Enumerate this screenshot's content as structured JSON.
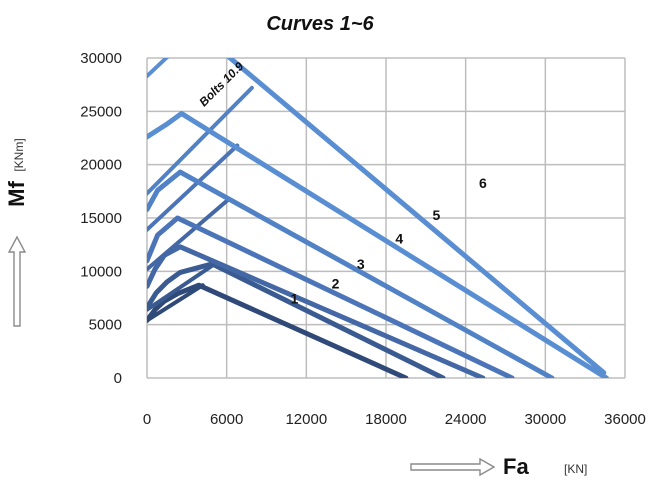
{
  "chart_data": {
    "type": "line",
    "title": "Curves 1~6",
    "xlabel": "Fa",
    "xunit": "[KN]",
    "ylabel": "Mf",
    "yunit": "[KNm]",
    "xlim": [
      0,
      36000
    ],
    "ylim": [
      0,
      30000
    ],
    "xticks": [
      "0",
      "6000",
      "12000",
      "18000",
      "24000",
      "30000",
      "36000"
    ],
    "yticks": [
      "0",
      "5000",
      "10000",
      "15000",
      "20000",
      "25000",
      "30000"
    ],
    "grid": true,
    "legend": "none",
    "colors": [
      "#2f4a78",
      "#3a5b91",
      "#4468a6",
      "#4b75b8",
      "#5282c6",
      "#5a8ed2"
    ],
    "series": [
      {
        "name": "1",
        "points": [
          [
            0,
            5400
          ],
          [
            600,
            6400
          ],
          [
            1300,
            7200
          ],
          [
            2300,
            7900
          ],
          [
            3900,
            8700
          ],
          [
            19500,
            0
          ]
        ],
        "bolt_line": [
          [
            0,
            5400
          ],
          [
            4200,
            8700
          ]
        ]
      },
      {
        "name": "2",
        "points": [
          [
            0,
            6600
          ],
          [
            700,
            8000
          ],
          [
            1500,
            9000
          ],
          [
            2500,
            9900
          ],
          [
            4900,
            10700
          ],
          [
            22300,
            0
          ]
        ],
        "bolt_line": [
          [
            0,
            6400
          ],
          [
            5000,
            10600
          ]
        ]
      },
      {
        "name": "3",
        "points": [
          [
            0,
            8600
          ],
          [
            600,
            10200
          ],
          [
            1300,
            11500
          ],
          [
            2500,
            12300
          ],
          [
            25300,
            0
          ]
        ],
        "bolt_line": [
          [
            0,
            10200
          ],
          [
            6100,
            16700
          ]
        ]
      },
      {
        "name": "4",
        "points": [
          [
            0,
            11000
          ],
          [
            800,
            13400
          ],
          [
            2300,
            15000
          ],
          [
            27500,
            0
          ]
        ],
        "bolt_line": [
          [
            0,
            13900
          ],
          [
            6800,
            21800
          ]
        ]
      },
      {
        "name": "5",
        "points": [
          [
            0,
            15800
          ],
          [
            800,
            17600
          ],
          [
            2500,
            19300
          ],
          [
            30500,
            0
          ]
        ],
        "bolt_line": [
          [
            0,
            17300
          ],
          [
            7900,
            27200
          ]
        ]
      },
      {
        "name": "6",
        "points": [
          [
            0,
            22600
          ],
          [
            1500,
            23800
          ],
          [
            2600,
            24800
          ],
          [
            34600,
            0
          ]
        ],
        "bolt_line": [
          [
            0,
            28300
          ],
          [
            2300,
            31000
          ]
        ]
      },
      {
        "name": "",
        "points": [
          [
            5300,
            31000
          ],
          [
            34400,
            500
          ]
        ],
        "bolt_line": []
      }
    ],
    "curve_labels": [
      {
        "text": "1",
        "x": 11100,
        "y": 7000
      },
      {
        "text": "2",
        "x": 14200,
        "y": 8400
      },
      {
        "text": "3",
        "x": 16100,
        "y": 10200
      },
      {
        "text": "4",
        "x": 19000,
        "y": 12600
      },
      {
        "text": "5",
        "x": 21800,
        "y": 14800
      },
      {
        "text": "6",
        "x": 25300,
        "y": 17800
      }
    ],
    "annotations": [
      {
        "text": "Bolts 10.9",
        "x": 4300,
        "y": 25400,
        "angle": -45
      }
    ]
  }
}
